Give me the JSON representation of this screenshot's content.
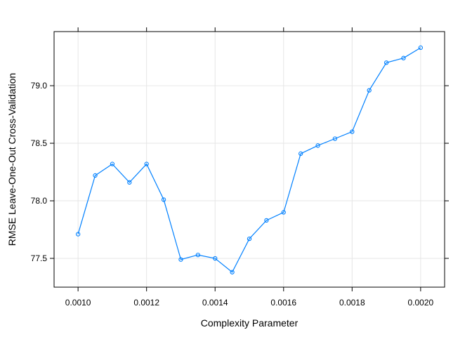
{
  "chart_data": {
    "type": "line",
    "xlabel": "Complexity Parameter",
    "ylabel": "RMSE Leave-One-Out Cross-Validation",
    "xlim": [
      0.00093,
      0.00207
    ],
    "ylim": [
      77.25,
      79.47
    ],
    "xticks": [
      "0.0010",
      "0.0012",
      "0.0014",
      "0.0016",
      "0.0018",
      "0.0020"
    ],
    "yticks": [
      "77.5",
      "78.0",
      "78.5",
      "79.0"
    ],
    "grid": true,
    "line_color": "#0080ff",
    "x": [
      0.001,
      0.00105,
      0.0011,
      0.00115,
      0.0012,
      0.00125,
      0.0013,
      0.00135,
      0.0014,
      0.00145,
      0.0015,
      0.00155,
      0.0016,
      0.00165,
      0.0017,
      0.00175,
      0.0018,
      0.00185,
      0.0019,
      0.00195,
      0.002
    ],
    "y": [
      77.71,
      78.22,
      78.32,
      78.16,
      78.32,
      78.01,
      77.49,
      77.53,
      77.5,
      77.38,
      77.67,
      77.83,
      77.9,
      78.41,
      78.48,
      78.54,
      78.6,
      78.96,
      79.2,
      79.24,
      79.33
    ]
  }
}
